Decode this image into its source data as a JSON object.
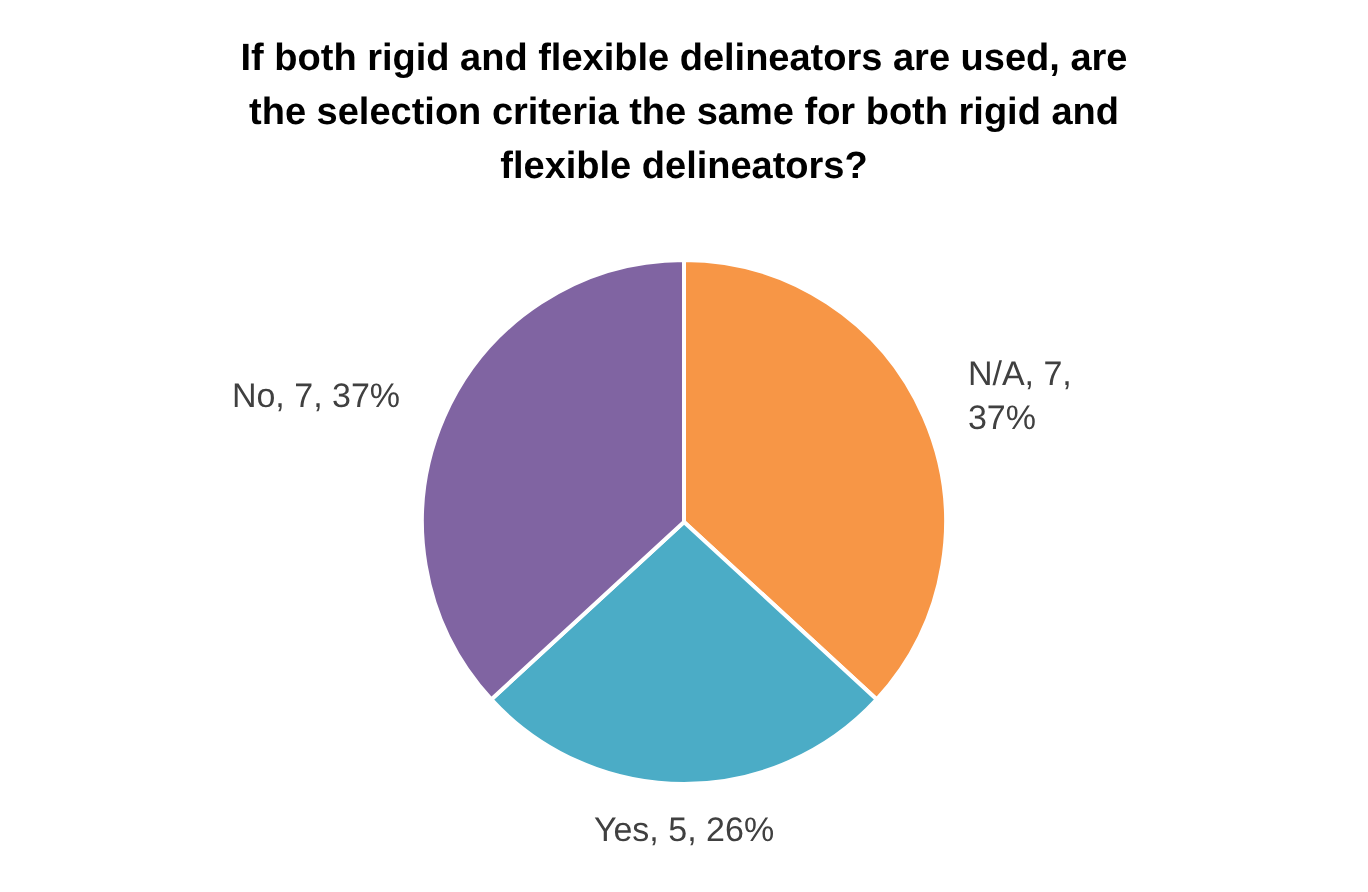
{
  "chart_data": {
    "type": "pie",
    "title": "If both rigid and flexible delineators are used, are the selection criteria the same for both rigid and flexible delineators?",
    "categories": [
      "N/A",
      "Yes",
      "No"
    ],
    "values": [
      7,
      5,
      7
    ],
    "colors": [
      "#f79646",
      "#4bacc6",
      "#8064a2"
    ],
    "value_labels": [
      "7, 37%",
      "5, 26%",
      "7, 37%"
    ],
    "legend": false
  }
}
